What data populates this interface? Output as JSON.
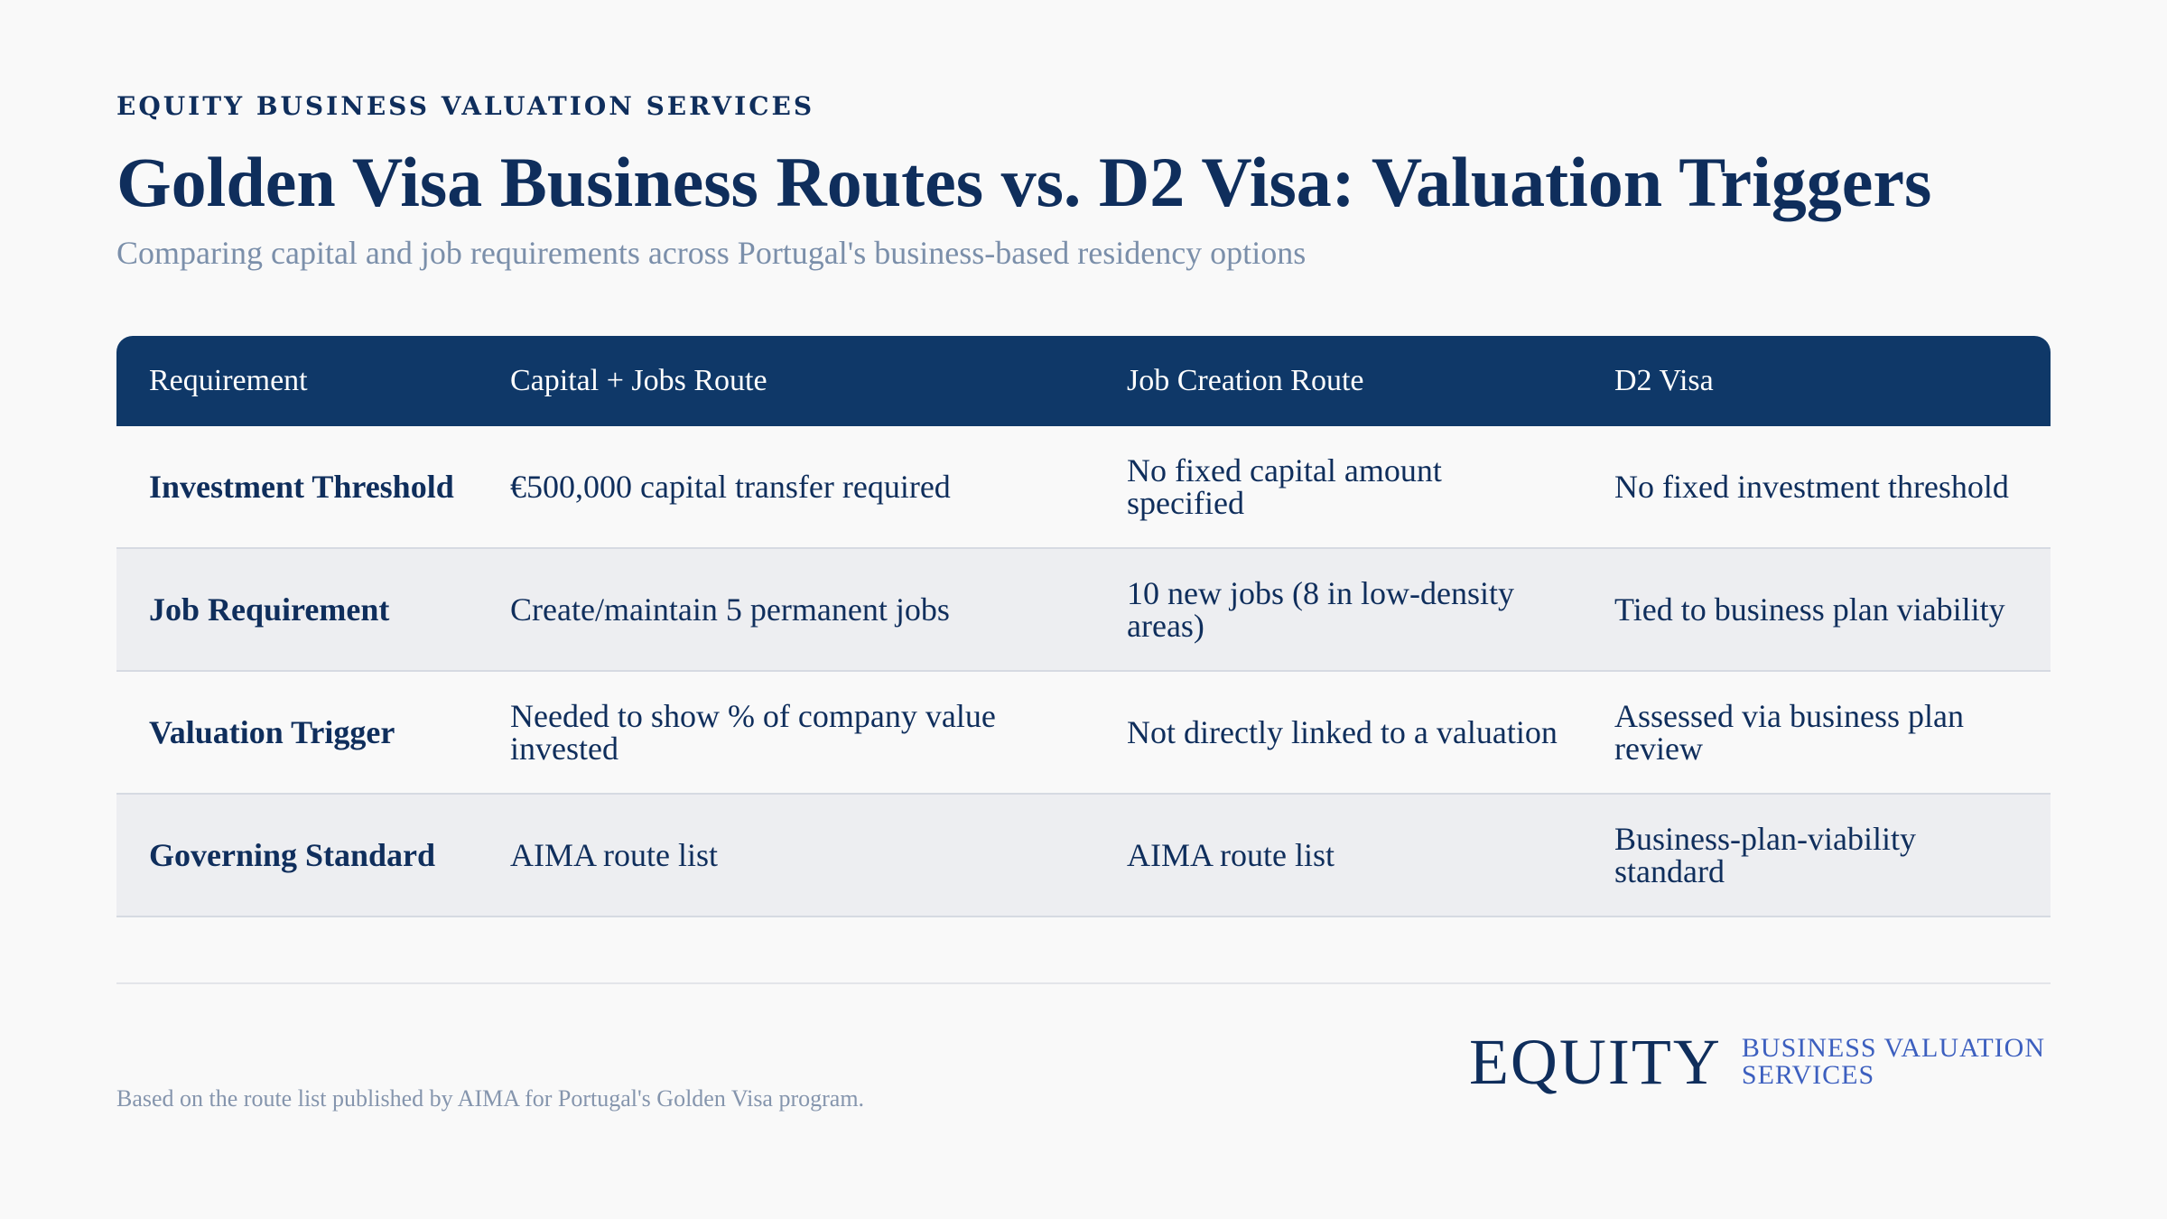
{
  "header": {
    "eyebrow": "EQUITY BUSINESS VALUATION SERVICES",
    "title": "Golden Visa Business Routes vs. D2 Visa: Valuation Triggers",
    "subtitle": "Comparing capital and job requirements across Portugal's business-based residency options"
  },
  "table": {
    "columns": [
      "Requirement",
      "Capital + Jobs Route",
      "Job Creation Route",
      "D2 Visa"
    ],
    "rows": [
      {
        "label": "Investment Threshold",
        "capital_jobs": "€500,000 capital transfer required",
        "job_creation": "No fixed capital amount specified",
        "d2": "No fixed investment threshold"
      },
      {
        "label": "Job Requirement",
        "capital_jobs": "Create/maintain 5 permanent jobs",
        "job_creation": "10 new jobs (8 in low-density areas)",
        "d2": "Tied to business plan viability"
      },
      {
        "label": "Valuation Trigger",
        "capital_jobs": "Needed to show % of company value invested",
        "job_creation": "Not directly linked to a valuation",
        "d2": "Assessed via business plan review"
      },
      {
        "label": "Governing Standard",
        "capital_jobs": "AIMA route list",
        "job_creation": "AIMA route list",
        "d2": "Business-plan-viability standard"
      }
    ]
  },
  "footer": {
    "note": "Based on the route list published by AIMA for Portugal's Golden Visa program.",
    "logo_word": "EQUITY",
    "logo_sub_line1": "BUSINESS VALUATION",
    "logo_sub_line2": "SERVICES"
  },
  "colors": {
    "primary": "#0f2e5c",
    "header_bg": "#0f3868",
    "accent": "#3c5fbf",
    "muted": "#7b8faa"
  }
}
